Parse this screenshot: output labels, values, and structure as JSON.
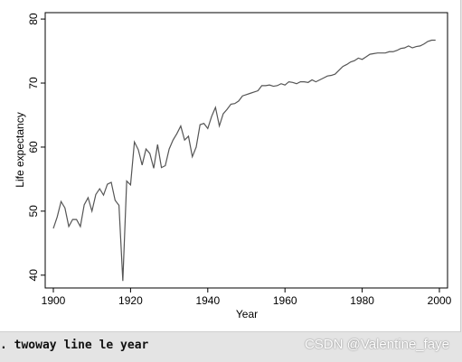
{
  "command": {
    "prompt": ".",
    "text": "twoway line le year"
  },
  "watermark": "CSDN @Valentine_faye",
  "chart_data": {
    "type": "line",
    "xlabel": "Year",
    "ylabel": "Life expectancy",
    "xlim": [
      1900,
      2000
    ],
    "ylim": [
      38,
      81
    ],
    "xticks": [
      1900,
      1920,
      1940,
      1960,
      1980,
      2000
    ],
    "yticks": [
      40,
      50,
      60,
      70,
      80
    ],
    "grid": false,
    "line_color": "#555555",
    "series": [
      {
        "x": [
          1900,
          1901,
          1902,
          1903,
          1904,
          1905,
          1906,
          1907,
          1908,
          1909,
          1910,
          1911,
          1912,
          1913,
          1914,
          1915,
          1916,
          1917,
          1918,
          1919,
          1920,
          1921,
          1922,
          1923,
          1924,
          1925,
          1926,
          1927,
          1928,
          1929,
          1930,
          1931,
          1932,
          1933,
          1934,
          1935,
          1936,
          1937,
          1938,
          1939,
          1940,
          1941,
          1942,
          1943,
          1944,
          1945,
          1946,
          1947,
          1948,
          1949,
          1950,
          1951,
          1952,
          1953,
          1954,
          1955,
          1956,
          1957,
          1958,
          1959,
          1960,
          1961,
          1962,
          1963,
          1964,
          1965,
          1966,
          1967,
          1968,
          1969,
          1970,
          1971,
          1972,
          1973,
          1974,
          1975,
          1976,
          1977,
          1978,
          1979,
          1980,
          1981,
          1982,
          1983,
          1984,
          1985,
          1986,
          1987,
          1988,
          1989,
          1990,
          1991,
          1992,
          1993,
          1994,
          1995,
          1996,
          1997,
          1998,
          1999
        ],
        "y": [
          47.3,
          49.1,
          51.5,
          50.5,
          47.6,
          48.7,
          48.7,
          47.6,
          51.0,
          52.1,
          50.0,
          52.6,
          53.5,
          52.5,
          54.2,
          54.5,
          51.7,
          50.9,
          39.1,
          54.7,
          54.1,
          60.8,
          59.6,
          57.2,
          59.7,
          59.0,
          56.7,
          60.4,
          56.8,
          57.1,
          59.7,
          61.1,
          62.1,
          63.3,
          61.1,
          61.7,
          58.5,
          60.0,
          63.5,
          63.7,
          62.9,
          64.8,
          66.2,
          63.3,
          65.2,
          65.9,
          66.7,
          66.8,
          67.2,
          68.0,
          68.2,
          68.4,
          68.6,
          68.8,
          69.6,
          69.6,
          69.7,
          69.5,
          69.6,
          69.9,
          69.7,
          70.2,
          70.1,
          69.9,
          70.2,
          70.2,
          70.1,
          70.5,
          70.2,
          70.5,
          70.8,
          71.1,
          71.2,
          71.4,
          72.0,
          72.6,
          72.9,
          73.3,
          73.5,
          73.9,
          73.7,
          74.1,
          74.5,
          74.6,
          74.7,
          74.7,
          74.7,
          74.9,
          74.9,
          75.1,
          75.4,
          75.5,
          75.8,
          75.5,
          75.7,
          75.8,
          76.1,
          76.5,
          76.7,
          76.7
        ]
      }
    ]
  }
}
